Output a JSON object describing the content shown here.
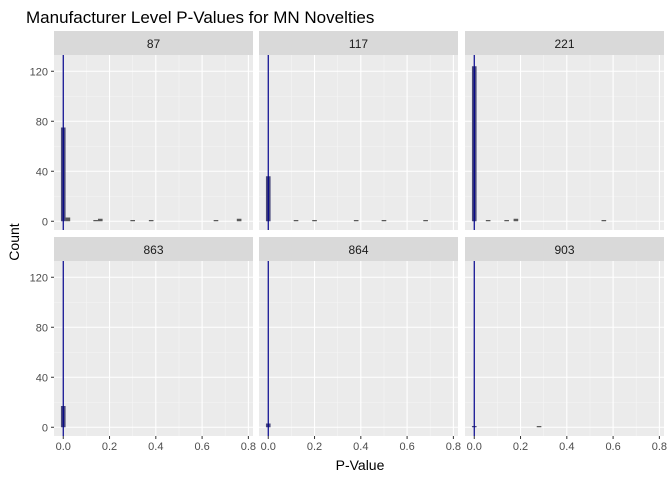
{
  "chart_data": {
    "type": "bar",
    "title": "Manufacturer Level P-Values for MN Novelties",
    "xlabel": "P-Value",
    "ylabel": "Count",
    "xlim": [
      -0.04,
      0.82
    ],
    "ylim": [
      -7,
      133
    ],
    "x_ticks": [
      0.0,
      0.2,
      0.4,
      0.6,
      0.8
    ],
    "x_tick_labels": [
      "0.0",
      "0.2",
      "0.4",
      "0.6",
      "0.8"
    ],
    "y_ticks": [
      0,
      40,
      80,
      120
    ],
    "y_tick_labels": [
      "0",
      "40",
      "80",
      "120"
    ],
    "bin_width": 0.02,
    "vline_x": 0.0,
    "grid": true,
    "colors": {
      "bar": "#595959",
      "bar_highlight": "#4a4a7a",
      "vline": "#00008B",
      "panel_bg": "#EBEBEB",
      "strip_bg": "#D9D9D9",
      "grid_major": "#FFFFFF"
    },
    "facets": [
      {
        "label": "87",
        "bars": [
          {
            "x": 0.0,
            "count": 75
          },
          {
            "x": 0.02,
            "count": 3
          },
          {
            "x": 0.14,
            "count": 1
          },
          {
            "x": 0.16,
            "count": 2
          },
          {
            "x": 0.3,
            "count": 1
          },
          {
            "x": 0.38,
            "count": 1
          },
          {
            "x": 0.66,
            "count": 1
          },
          {
            "x": 0.76,
            "count": 2
          }
        ]
      },
      {
        "label": "117",
        "bars": [
          {
            "x": 0.0,
            "count": 36
          },
          {
            "x": 0.12,
            "count": 1
          },
          {
            "x": 0.2,
            "count": 1
          },
          {
            "x": 0.38,
            "count": 1
          },
          {
            "x": 0.5,
            "count": 1
          },
          {
            "x": 0.68,
            "count": 1
          }
        ]
      },
      {
        "label": "221",
        "bars": [
          {
            "x": 0.0,
            "count": 124
          },
          {
            "x": 0.06,
            "count": 1
          },
          {
            "x": 0.14,
            "count": 1
          },
          {
            "x": 0.18,
            "count": 2
          },
          {
            "x": 0.56,
            "count": 1
          }
        ]
      },
      {
        "label": "863",
        "bars": [
          {
            "x": 0.0,
            "count": 17
          }
        ]
      },
      {
        "label": "864",
        "bars": [
          {
            "x": 0.0,
            "count": 3
          }
        ]
      },
      {
        "label": "903",
        "bars": [
          {
            "x": 0.0,
            "count": 1
          },
          {
            "x": 0.28,
            "count": 1
          }
        ]
      }
    ]
  }
}
